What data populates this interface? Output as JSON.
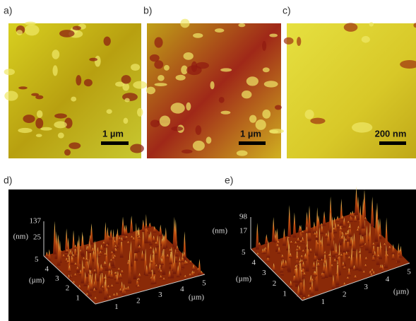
{
  "panels": [
    {
      "label": "a)",
      "scale_bar": "1 µm"
    },
    {
      "label": "b)",
      "scale_bar": "1 µm"
    },
    {
      "label": "c)",
      "scale_bar": "200 nm"
    }
  ],
  "plots": [
    {
      "label": "d)",
      "z_unit": "(nm)",
      "z_ticks": [
        137,
        25
      ],
      "y_unit": "(µm)",
      "y_ticks": [
        5,
        4,
        3,
        2,
        1
      ],
      "x_unit": "(µm)",
      "x_ticks": [
        1,
        2,
        3,
        4,
        5
      ]
    },
    {
      "label": "e)",
      "z_unit": "(nm)",
      "z_ticks": [
        98,
        17
      ],
      "y_unit": "(µm)",
      "y_ticks": [
        5,
        4,
        3,
        2,
        1
      ],
      "x_unit": "(µm)",
      "x_ticks": [
        1,
        2,
        3,
        4,
        5
      ]
    }
  ]
}
